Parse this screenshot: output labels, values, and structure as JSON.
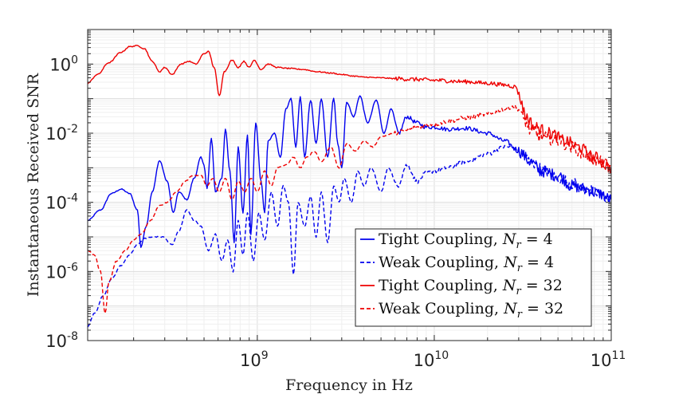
{
  "chart_data": {
    "type": "line",
    "xscale": "log",
    "yscale": "log",
    "xlim": [
      110000000.0,
      100000000000.0
    ],
    "ylim": [
      1e-08,
      10
    ],
    "xlabel": "Frequency in Hz",
    "ylabel": "Instantaneous Received SNR",
    "grid": true,
    "legend_position": "bottom-right",
    "x_ticks": [
      {
        "base": "10",
        "exp": "9",
        "value": 1000000000.0
      },
      {
        "base": "10",
        "exp": "10",
        "value": 10000000000.0
      },
      {
        "base": "10",
        "exp": "11",
        "value": 100000000000.0
      }
    ],
    "y_ticks": [
      {
        "base": "10",
        "exp": "0",
        "value": 1
      },
      {
        "base": "10",
        "exp": "-2",
        "value": 0.01
      },
      {
        "base": "10",
        "exp": "-4",
        "value": 0.0001
      },
      {
        "base": "10",
        "exp": "-6",
        "value": 1e-06
      },
      {
        "base": "10",
        "exp": "-8",
        "value": 1e-08
      }
    ],
    "series": [
      {
        "name_text": "Tight Coupling, ",
        "name_var": "N",
        "name_sub": "r",
        "name_eq": " = 4",
        "color": "#0000ee",
        "dash": "solid",
        "points": [
          [
            110000000.0,
            3e-05
          ],
          [
            130000000.0,
            6e-05
          ],
          [
            150000000.0,
            0.00018
          ],
          [
            170000000.0,
            0.00024
          ],
          [
            190000000.0,
            0.00018
          ],
          [
            210000000.0,
            6e-05
          ],
          [
            220000000.0,
            5e-06
          ],
          [
            235000000.0,
            2e-05
          ],
          [
            255000000.0,
            0.0002
          ],
          [
            280000000.0,
            0.0016
          ],
          [
            310000000.0,
            0.0004
          ],
          [
            335000000.0,
            5e-05
          ],
          [
            360000000.0,
            0.0002
          ],
          [
            400000000.0,
            0.00012
          ],
          [
            440000000.0,
            0.0005
          ],
          [
            480000000.0,
            0.002
          ],
          [
            500000000.0,
            0.0012
          ],
          [
            520000000.0,
            0.00025
          ],
          [
            550000000.0,
            0.007
          ],
          [
            580000000.0,
            0.0002
          ],
          [
            630000000.0,
            0.0005
          ],
          [
            660000000.0,
            0.013
          ],
          [
            700000000.0,
            0.0008
          ],
          [
            740000000.0,
            7e-06
          ],
          [
            780000000.0,
            0.004
          ],
          [
            830000000.0,
            5e-05
          ],
          [
            880000000.0,
            0.009
          ],
          [
            920000000.0,
            1.2e-05
          ],
          [
            980000000.0,
            0.02
          ],
          [
            1050000000.0,
            0.0004
          ],
          [
            1100000000.0,
            5e-05
          ],
          [
            1150000000.0,
            0.006
          ],
          [
            1250000000.0,
            0.01
          ],
          [
            1350000000.0,
            0.002
          ],
          [
            1450000000.0,
            0.05
          ],
          [
            1550000000.0,
            0.1
          ],
          [
            1650000000.0,
            0.004
          ],
          [
            1750000000.0,
            0.11
          ],
          [
            1850000000.0,
            0.002
          ],
          [
            2000000000.0,
            0.09
          ],
          [
            2150000000.0,
            0.005
          ],
          [
            2300000000.0,
            0.1
          ],
          [
            2500000000.0,
            0.002
          ],
          [
            2700000000.0,
            0.1
          ],
          [
            2850000000.0,
            0.005
          ],
          [
            3000000000.0,
            0.001
          ],
          [
            3200000000.0,
            0.08
          ],
          [
            3500000000.0,
            0.03
          ],
          [
            3800000000.0,
            0.12
          ],
          [
            4200000000.0,
            0.02
          ],
          [
            4700000000.0,
            0.09
          ],
          [
            5200000000.0,
            0.01
          ],
          [
            5700000000.0,
            0.05
          ],
          [
            6300000000.0,
            0.01
          ],
          [
            7000000000.0,
            0.03
          ],
          [
            8000000000.0,
            0.02
          ],
          [
            9000000000.0,
            0.015
          ],
          [
            10000000000.0,
            0.015
          ],
          [
            12000000000.0,
            0.013
          ],
          [
            15000000000.0,
            0.014
          ],
          [
            20000000000.0,
            0.01
          ],
          [
            25000000000.0,
            0.006
          ],
          [
            30000000000.0,
            0.003
          ],
          [
            35000000000.0,
            0.0015
          ],
          [
            40000000000.0,
            0.0008
          ],
          [
            50000000000.0,
            0.0006
          ],
          [
            60000000000.0,
            0.0003
          ],
          [
            70000000000.0,
            0.00025
          ],
          [
            85000000000.0,
            0.00018
          ],
          [
            100000000000.0,
            0.00012
          ]
        ]
      },
      {
        "name_text": "Weak Coupling, ",
        "name_var": "N",
        "name_sub": "r",
        "name_eq": " = 4",
        "color": "#0000ee",
        "dash": "dashed",
        "points": [
          [
            110000000.0,
            2.5e-08
          ],
          [
            120000000.0,
            6e-08
          ],
          [
            135000000.0,
            2e-07
          ],
          [
            150000000.0,
            6e-07
          ],
          [
            170000000.0,
            1.5e-06
          ],
          [
            190000000.0,
            3e-06
          ],
          [
            210000000.0,
            6e-06
          ],
          [
            230000000.0,
            9e-06
          ],
          [
            260000000.0,
            1e-05
          ],
          [
            290000000.0,
            1e-05
          ],
          [
            330000000.0,
            6e-06
          ],
          [
            360000000.0,
            1.5e-05
          ],
          [
            400000000.0,
            6e-05
          ],
          [
            440000000.0,
            3e-05
          ],
          [
            480000000.0,
            2e-05
          ],
          [
            530000000.0,
            4e-06
          ],
          [
            580000000.0,
            1.2e-05
          ],
          [
            630000000.0,
            2e-06
          ],
          [
            680000000.0,
            8e-06
          ],
          [
            730000000.0,
            1e-06
          ],
          [
            780000000.0,
            3e-05
          ],
          [
            830000000.0,
            3e-06
          ],
          [
            880000000.0,
            5e-05
          ],
          [
            950000000.0,
            2e-06
          ],
          [
            1020000000.0,
            5e-05
          ],
          [
            1100000000.0,
            8e-06
          ],
          [
            1200000000.0,
            0.0002
          ],
          [
            1300000000.0,
            2e-05
          ],
          [
            1400000000.0,
            0.0003
          ],
          [
            1500000000.0,
            0.0001
          ],
          [
            1600000000.0,
            8e-07
          ],
          [
            1700000000.0,
            0.0001
          ],
          [
            1850000000.0,
            2e-05
          ],
          [
            2000000000.0,
            0.00015
          ],
          [
            2150000000.0,
            1e-05
          ],
          [
            2300000000.0,
            0.0002
          ],
          [
            2500000000.0,
            7e-06
          ],
          [
            2700000000.0,
            0.0003
          ],
          [
            2900000000.0,
            0.0001
          ],
          [
            3100000000.0,
            0.0005
          ],
          [
            3400000000.0,
            0.0001
          ],
          [
            3700000000.0,
            0.0008
          ],
          [
            4000000000.0,
            0.0003
          ],
          [
            4400000000.0,
            0.001
          ],
          [
            5000000000.0,
            0.0002
          ],
          [
            5500000000.0,
            0.001
          ],
          [
            6200000000.0,
            0.0003
          ],
          [
            7000000000.0,
            0.0012
          ],
          [
            8000000000.0,
            0.0004
          ],
          [
            9000000000.0,
            0.0007
          ],
          [
            10000000000.0,
            0.0008
          ],
          [
            12000000000.0,
            0.001
          ],
          [
            15000000000.0,
            0.0015
          ],
          [
            20000000000.0,
            0.0025
          ],
          [
            25000000000.0,
            0.004
          ],
          [
            28000000000.0,
            0.004
          ],
          [
            31000000000.0,
            0.0025
          ],
          [
            35000000000.0,
            0.0015
          ],
          [
            42000000000.0,
            0.0008
          ],
          [
            50000000000.0,
            0.0005
          ],
          [
            60000000000.0,
            0.00035
          ],
          [
            70000000000.0,
            0.00025
          ],
          [
            85000000000.0,
            0.00018
          ],
          [
            100000000000.0,
            0.00012
          ]
        ]
      },
      {
        "name_text": "Tight Coupling, ",
        "name_var": "N",
        "name_sub": "r",
        "name_eq": " = 32",
        "color": "#ee0000",
        "dash": "solid",
        "points": [
          [
            110000000.0,
            0.28
          ],
          [
            125000000.0,
            0.5
          ],
          [
            145000000.0,
            1.1
          ],
          [
            170000000.0,
            2.2
          ],
          [
            190000000.0,
            3.2
          ],
          [
            210000000.0,
            3.4
          ],
          [
            230000000.0,
            2.8
          ],
          [
            255000000.0,
            1.2
          ],
          [
            280000000.0,
            0.6
          ],
          [
            300000000.0,
            0.8
          ],
          [
            330000000.0,
            0.5
          ],
          [
            370000000.0,
            1.0
          ],
          [
            410000000.0,
            1.2
          ],
          [
            450000000.0,
            1.0
          ],
          [
            500000000.0,
            2.0
          ],
          [
            530000000.0,
            2.3
          ],
          [
            570000000.0,
            0.8
          ],
          [
            610000000.0,
            0.12
          ],
          [
            650000000.0,
            0.6
          ],
          [
            720000000.0,
            1.3
          ],
          [
            780000000.0,
            0.8
          ],
          [
            840000000.0,
            1.2
          ],
          [
            900000000.0,
            0.8
          ],
          [
            960000000.0,
            1.3
          ],
          [
            1050000000.0,
            0.7
          ],
          [
            1150000000.0,
            1.0
          ],
          [
            1300000000.0,
            0.8
          ],
          [
            1500000000.0,
            0.75
          ],
          [
            1800000000.0,
            0.7
          ],
          [
            2200000000.0,
            0.6
          ],
          [
            2600000000.0,
            0.55
          ],
          [
            3000000000.0,
            0.5
          ],
          [
            3500000000.0,
            0.45
          ],
          [
            4000000000.0,
            0.42
          ],
          [
            5000000000.0,
            0.4
          ],
          [
            6000000000.0,
            0.38
          ],
          [
            8000000000.0,
            0.36
          ],
          [
            10000000000.0,
            0.34
          ],
          [
            15000000000.0,
            0.31
          ],
          [
            20000000000.0,
            0.28
          ],
          [
            25000000000.0,
            0.25
          ],
          [
            29000000000.0,
            0.22
          ],
          [
            30500000000.0,
            0.1
          ],
          [
            33000000000.0,
            0.03
          ],
          [
            37000000000.0,
            0.015
          ],
          [
            45000000000.0,
            0.01
          ],
          [
            55000000000.0,
            0.006
          ],
          [
            65000000000.0,
            0.004
          ],
          [
            80000000000.0,
            0.002
          ],
          [
            100000000000.0,
            0.001
          ]
        ]
      },
      {
        "name_text": "Weak Coupling, ",
        "name_var": "N",
        "name_sub": "r",
        "name_eq": " = 32",
        "color": "#ee0000",
        "dash": "dashed",
        "points": [
          [
            110000000.0,
            4e-06
          ],
          [
            120000000.0,
            3e-06
          ],
          [
            130000000.0,
            1e-06
          ],
          [
            138000000.0,
            6e-08
          ],
          [
            145000000.0,
            5e-07
          ],
          [
            160000000.0,
            2e-06
          ],
          [
            180000000.0,
            4e-06
          ],
          [
            200000000.0,
            8e-06
          ],
          [
            220000000.0,
            1.2e-05
          ],
          [
            250000000.0,
            3e-05
          ],
          [
            280000000.0,
            8e-05
          ],
          [
            310000000.0,
            0.0001
          ],
          [
            350000000.0,
            0.0002
          ],
          [
            390000000.0,
            0.0004
          ],
          [
            430000000.0,
            0.0006
          ],
          [
            480000000.0,
            0.0006
          ],
          [
            520000000.0,
            0.0003
          ],
          [
            560000000.0,
            0.0005
          ],
          [
            610000000.0,
            0.0002
          ],
          [
            660000000.0,
            0.0005
          ],
          [
            720000000.0,
            0.00012
          ],
          [
            780000000.0,
            0.0004
          ],
          [
            850000000.0,
            0.0002
          ],
          [
            920000000.0,
            0.0005
          ],
          [
            1000000000.0,
            0.0002
          ],
          [
            1100000000.0,
            0.0008
          ],
          [
            1200000000.0,
            0.0003
          ],
          [
            1300000000.0,
            0.001
          ],
          [
            1450000000.0,
            0.0012
          ],
          [
            1600000000.0,
            0.002
          ],
          [
            1750000000.0,
            0.001
          ],
          [
            1900000000.0,
            0.002
          ],
          [
            2100000000.0,
            0.003
          ],
          [
            2300000000.0,
            0.0015
          ],
          [
            2600000000.0,
            0.004
          ],
          [
            2900000000.0,
            0.001
          ],
          [
            3200000000.0,
            0.005
          ],
          [
            3600000000.0,
            0.003
          ],
          [
            4000000000.0,
            0.006
          ],
          [
            4500000000.0,
            0.004
          ],
          [
            5000000000.0,
            0.008
          ],
          [
            6000000000.0,
            0.01
          ],
          [
            7000000000.0,
            0.012
          ],
          [
            8000000000.0,
            0.015
          ],
          [
            10000000000.0,
            0.018
          ],
          [
            12000000000.0,
            0.022
          ],
          [
            15000000000.0,
            0.028
          ],
          [
            20000000000.0,
            0.035
          ],
          [
            25000000000.0,
            0.05
          ],
          [
            28000000000.0,
            0.06
          ],
          [
            30000000000.0,
            0.05
          ],
          [
            32000000000.0,
            0.025
          ],
          [
            35000000000.0,
            0.012
          ],
          [
            40000000000.0,
            0.008
          ],
          [
            50000000000.0,
            0.006
          ],
          [
            60000000000.0,
            0.004
          ],
          [
            70000000000.0,
            0.0025
          ],
          [
            85000000000.0,
            0.0015
          ],
          [
            100000000000.0,
            0.0011
          ]
        ]
      }
    ]
  }
}
